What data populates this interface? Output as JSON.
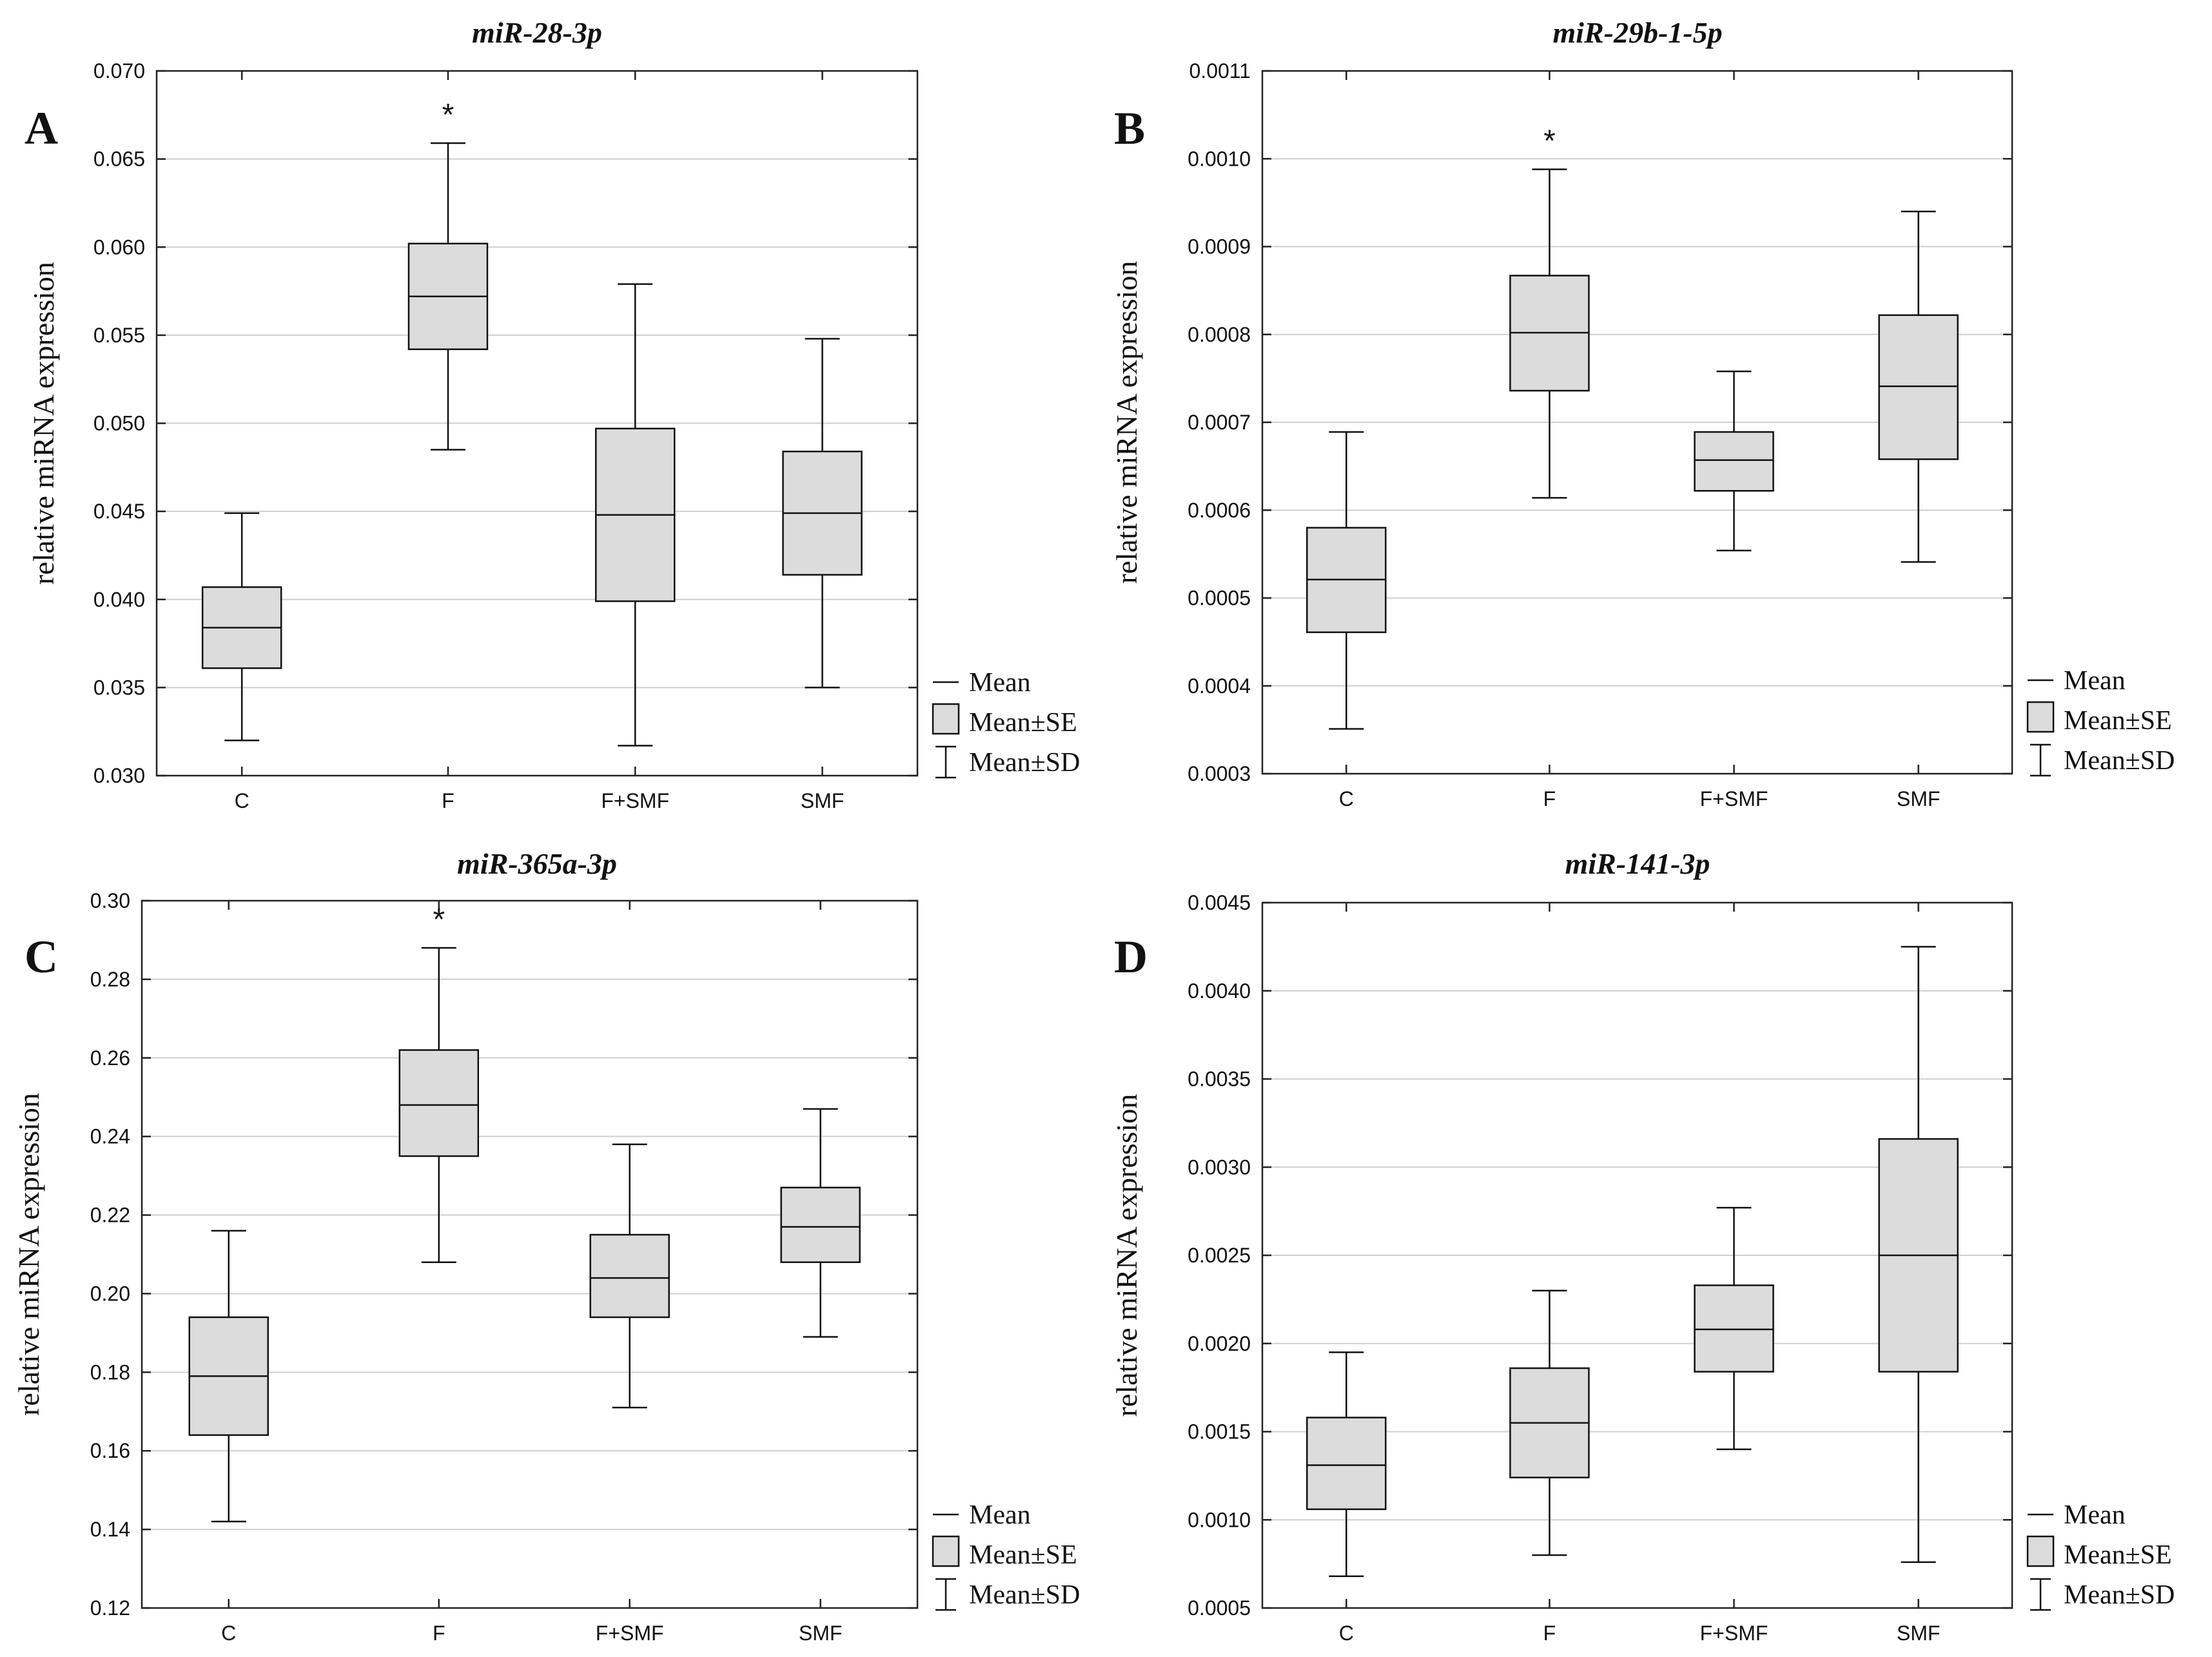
{
  "legend": {
    "mean": "Mean",
    "se": "Mean±SE",
    "sd": "Mean±SD"
  },
  "chart_data": [
    {
      "type": "box",
      "panel": "A",
      "title": "miR-28-3p",
      "ylabel": "relative miRNA expression",
      "categories": [
        "C",
        "F",
        "F+SMF",
        "SMF"
      ],
      "ylim": [
        0.03,
        0.07
      ],
      "yticks": [
        "0.030",
        "0.035",
        "0.040",
        "0.045",
        "0.050",
        "0.055",
        "0.060",
        "0.065",
        "0.070"
      ],
      "grid": true,
      "legend_position": "bottom-right",
      "series": [
        {
          "category": "C",
          "mean": 0.0384,
          "se_low": 0.0361,
          "se_high": 0.0407,
          "sd_low": 0.032,
          "sd_high": 0.0449
        },
        {
          "category": "F",
          "mean": 0.0572,
          "se_low": 0.0542,
          "se_high": 0.0602,
          "sd_low": 0.0485,
          "sd_high": 0.0659,
          "annotation": "*"
        },
        {
          "category": "F+SMF",
          "mean": 0.0448,
          "se_low": 0.0399,
          "se_high": 0.0497,
          "sd_low": 0.0317,
          "sd_high": 0.0579
        },
        {
          "category": "SMF",
          "mean": 0.0449,
          "se_low": 0.0414,
          "se_high": 0.0484,
          "sd_low": 0.035,
          "sd_high": 0.0548
        }
      ]
    },
    {
      "type": "box",
      "panel": "B",
      "title": "miR-29b-1-5p",
      "ylabel": "relative miRNA expression",
      "categories": [
        "C",
        "F",
        "F+SMF",
        "SMF"
      ],
      "ylim": [
        0.0003,
        0.0011
      ],
      "yticks": [
        "0.0003",
        "0.0004",
        "0.0005",
        "0.0006",
        "0.0007",
        "0.0008",
        "0.0009",
        "0.0010",
        "0.0011"
      ],
      "grid": true,
      "legend_position": "bottom-right",
      "series": [
        {
          "category": "C",
          "mean": 0.000521,
          "se_low": 0.000461,
          "se_high": 0.00058,
          "sd_low": 0.000351,
          "sd_high": 0.000689
        },
        {
          "category": "F",
          "mean": 0.000802,
          "se_low": 0.000736,
          "se_high": 0.000867,
          "sd_low": 0.000614,
          "sd_high": 0.000988,
          "annotation": "*"
        },
        {
          "category": "F+SMF",
          "mean": 0.000657,
          "se_low": 0.000622,
          "se_high": 0.000689,
          "sd_low": 0.000554,
          "sd_high": 0.000758
        },
        {
          "category": "SMF",
          "mean": 0.000741,
          "se_low": 0.000658,
          "se_high": 0.000822,
          "sd_low": 0.000541,
          "sd_high": 0.00094
        }
      ]
    },
    {
      "type": "box",
      "panel": "C",
      "title": "miR-365a-3p",
      "ylabel": "relative miRNA expression",
      "categories": [
        "C",
        "F",
        "F+SMF",
        "SMF"
      ],
      "ylim": [
        0.12,
        0.3
      ],
      "yticks": [
        "0.12",
        "0.14",
        "0.16",
        "0.18",
        "0.20",
        "0.22",
        "0.24",
        "0.26",
        "0.28",
        "0.30"
      ],
      "grid": true,
      "legend_position": "bottom-right",
      "series": [
        {
          "category": "C",
          "mean": 0.179,
          "se_low": 0.164,
          "se_high": 0.194,
          "sd_low": 0.142,
          "sd_high": 0.216
        },
        {
          "category": "F",
          "mean": 0.248,
          "se_low": 0.235,
          "se_high": 0.262,
          "sd_low": 0.208,
          "sd_high": 0.288,
          "annotation": "*"
        },
        {
          "category": "F+SMF",
          "mean": 0.204,
          "se_low": 0.194,
          "se_high": 0.215,
          "sd_low": 0.171,
          "sd_high": 0.238
        },
        {
          "category": "SMF",
          "mean": 0.217,
          "se_low": 0.208,
          "se_high": 0.227,
          "sd_low": 0.189,
          "sd_high": 0.247
        }
      ]
    },
    {
      "type": "box",
      "panel": "D",
      "title": "miR-141-3p",
      "ylabel": "relative miRNA expression",
      "categories": [
        "C",
        "F",
        "F+SMF",
        "SMF"
      ],
      "ylim": [
        0.0005,
        0.0045
      ],
      "yticks": [
        "0.0005",
        "0.0010",
        "0.0015",
        "0.0020",
        "0.0025",
        "0.0030",
        "0.0035",
        "0.0040",
        "0.0045"
      ],
      "grid": true,
      "legend_position": "bottom-right",
      "series": [
        {
          "category": "C",
          "mean": 0.00131,
          "se_low": 0.00106,
          "se_high": 0.00158,
          "sd_low": 0.00068,
          "sd_high": 0.00195
        },
        {
          "category": "F",
          "mean": 0.00155,
          "se_low": 0.00124,
          "se_high": 0.00186,
          "sd_low": 0.0008,
          "sd_high": 0.0023
        },
        {
          "category": "F+SMF",
          "mean": 0.00208,
          "se_low": 0.00184,
          "se_high": 0.00233,
          "sd_low": 0.0014,
          "sd_high": 0.00277
        },
        {
          "category": "SMF",
          "mean": 0.0025,
          "se_low": 0.00184,
          "se_high": 0.00316,
          "sd_low": 0.00076,
          "sd_high": 0.00425
        }
      ]
    }
  ]
}
